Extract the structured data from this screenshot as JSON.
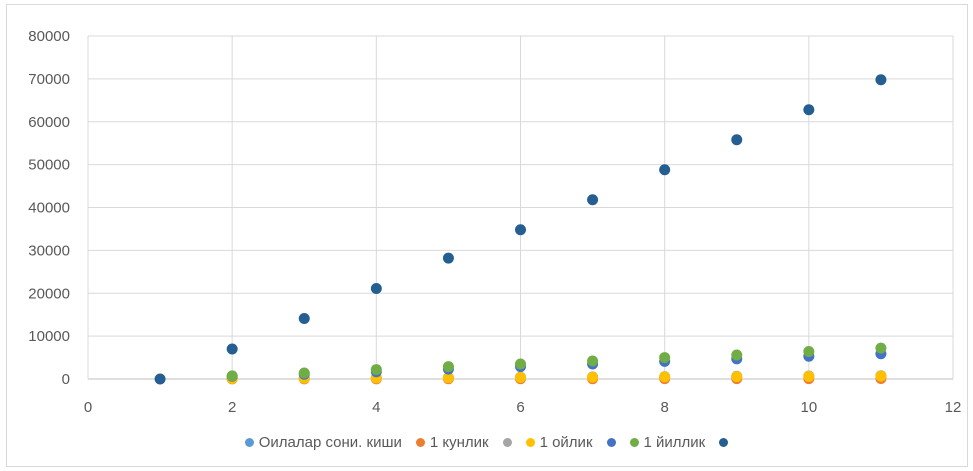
{
  "chart_data": {
    "type": "scatter",
    "title": "",
    "xlabel": "",
    "ylabel": "",
    "xlim": [
      0,
      12
    ],
    "ylim": [
      0,
      80000
    ],
    "x_ticks": [
      0,
      2,
      4,
      6,
      8,
      10,
      12
    ],
    "y_ticks": [
      0,
      10000,
      20000,
      30000,
      40000,
      50000,
      60000,
      70000,
      80000
    ],
    "grid": true,
    "legend_position": "bottom",
    "series": [
      {
        "name": "Оилалар сони. киши",
        "color": "#5b9bd5",
        "points": []
      },
      {
        "name": "1 кунлик",
        "color": "#ed7d31",
        "points": [
          [
            2,
            20
          ],
          [
            3,
            30
          ],
          [
            4,
            40
          ],
          [
            5,
            50
          ],
          [
            6,
            60
          ],
          [
            7,
            70
          ],
          [
            8,
            80
          ],
          [
            9,
            90
          ],
          [
            10,
            100
          ],
          [
            11,
            110
          ]
        ]
      },
      {
        "name": "",
        "color": "#a5a5a5",
        "points": [
          [
            2,
            140
          ],
          [
            3,
            210
          ],
          [
            4,
            280
          ],
          [
            5,
            350
          ],
          [
            6,
            420
          ],
          [
            7,
            490
          ],
          [
            8,
            560
          ],
          [
            9,
            630
          ],
          [
            10,
            700
          ],
          [
            11,
            770
          ]
        ]
      },
      {
        "name": "1 ойлик",
        "color": "#ffc000",
        "points": [
          [
            2,
            120
          ],
          [
            3,
            180
          ],
          [
            4,
            240
          ],
          [
            5,
            300
          ],
          [
            6,
            360
          ],
          [
            7,
            420
          ],
          [
            8,
            480
          ],
          [
            9,
            540
          ],
          [
            10,
            600
          ],
          [
            11,
            660
          ]
        ]
      },
      {
        "name": "",
        "color": "#4472c4",
        "points": [
          [
            2,
            640
          ],
          [
            3,
            1100
          ],
          [
            4,
            1700
          ],
          [
            5,
            2300
          ],
          [
            6,
            2900
          ],
          [
            7,
            3500
          ],
          [
            8,
            4100
          ],
          [
            9,
            4700
          ],
          [
            10,
            5300
          ],
          [
            11,
            5900
          ]
        ]
      },
      {
        "name": "1 йиллик",
        "color": "#70ad47",
        "points": [
          [
            2,
            730
          ],
          [
            3,
            1400
          ],
          [
            4,
            2200
          ],
          [
            5,
            2900
          ],
          [
            6,
            3500
          ],
          [
            7,
            4200
          ],
          [
            8,
            5000
          ],
          [
            9,
            5600
          ],
          [
            10,
            6400
          ],
          [
            11,
            7200
          ]
        ]
      },
      {
        "name": "",
        "color": "#255e91",
        "points": [
          [
            1,
            0
          ],
          [
            2,
            7000
          ],
          [
            3,
            14100
          ],
          [
            4,
            21100
          ],
          [
            5,
            28200
          ],
          [
            6,
            34800
          ],
          [
            7,
            41800
          ],
          [
            8,
            48800
          ],
          [
            9,
            55800
          ],
          [
            10,
            62800
          ],
          [
            11,
            69800
          ]
        ]
      }
    ]
  }
}
